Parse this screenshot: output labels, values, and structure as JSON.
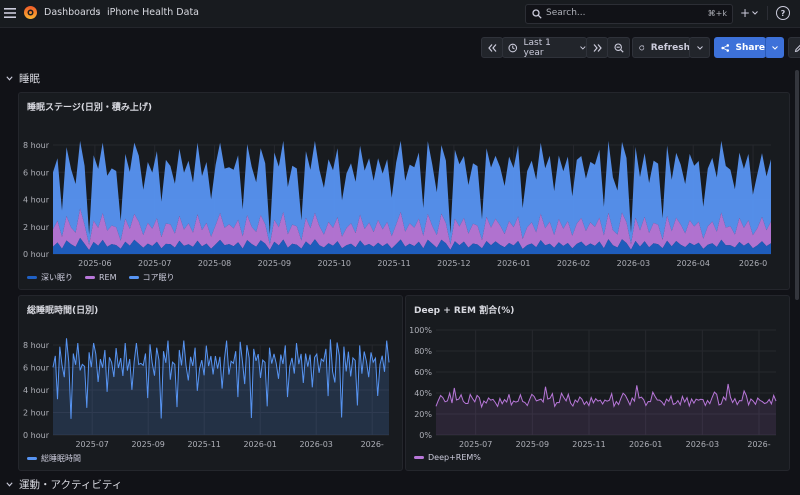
{
  "topbar": {
    "breadcrumb_root": "Dashboards",
    "breadcrumb_sep": "›",
    "breadcrumb_current": "iPhone Health Data",
    "search_placeholder": "Search...",
    "search_shortcut": "⌘+k",
    "plus_label": "+",
    "help_label": "?"
  },
  "toolbar": {
    "time_range": "Last 1 year",
    "refresh_label": "Refresh",
    "share_label": "Share"
  },
  "rows": {
    "sleep_title": "睡眠",
    "activity_title": "運動・アクティビティ"
  },
  "colors": {
    "deep": "#1f60c4",
    "rem": "#b877d9",
    "core": "#5794f2",
    "total": "#5794f2",
    "ratio": "#b877d9",
    "accent": "#3d71d9"
  },
  "panels": {
    "stages": {
      "title": "睡眠ステージ(日別・積み上げ)",
      "y_ticks": [
        "0 hour",
        "2 hour",
        "4 hour",
        "6 hour",
        "8 hour"
      ],
      "x_ticks": [
        "2025-06",
        "2025-07",
        "2025-08",
        "2025-09",
        "2025-10",
        "2025-11",
        "2025-12",
        "2026-01",
        "2026-02",
        "2026-03",
        "2026-04",
        "2026-0"
      ],
      "legend": [
        "深い眠り",
        "REM",
        "コア眠り"
      ]
    },
    "total": {
      "title": "総睡眠時間(日別)",
      "y_ticks": [
        "0 hour",
        "2 hour",
        "4 hour",
        "6 hour",
        "8 hour"
      ],
      "x_ticks": [
        "2025-07",
        "2025-09",
        "2025-11",
        "2026-01",
        "2026-03",
        "2026-"
      ],
      "legend": [
        "総睡眠時間"
      ]
    },
    "ratio": {
      "title": "Deep + REM 割合(%)",
      "y_ticks": [
        "0%",
        "20%",
        "40%",
        "60%",
        "80%",
        "100%"
      ],
      "x_ticks": [
        "2025-07",
        "2025-09",
        "2025-11",
        "2026-01",
        "2026-03",
        "2026-"
      ],
      "legend": [
        "Deep+REM%"
      ]
    }
  },
  "chart_data": [
    {
      "type": "area",
      "title": "睡眠ステージ(日別・積み上げ)",
      "stacked": true,
      "x_range": [
        "2025-05",
        "2026-05"
      ],
      "ylim": [
        0,
        9
      ],
      "y_unit": "hour",
      "series": [
        {
          "name": "深い眠り",
          "approx_values": [
            0.6,
            0.9,
            0.4,
            1.0,
            0.7,
            0.5,
            1.1,
            0.8,
            0.3,
            0.9,
            0.6,
            1.0,
            0.5,
            0.8,
            0.7,
            0.4,
            0.9,
            0.6,
            1.0,
            0.7,
            0.5,
            0.8,
            0.6,
            0.9,
            0.4,
            0.7,
            0.8,
            0.5,
            1.0,
            0.6,
            0.7,
            0.5,
            0.9,
            0.6,
            0.8,
            0.4,
            0.7,
            1.0,
            0.6,
            0.8
          ]
        },
        {
          "name": "REM",
          "approx_values": [
            1.4,
            1.7,
            0.9,
            1.8,
            1.2,
            1.0,
            2.0,
            1.5,
            0.4,
            1.6,
            1.3,
            1.9,
            1.1,
            1.5,
            1.4,
            0.6,
            1.7,
            1.2,
            1.8,
            1.5,
            1.0,
            1.6,
            1.3,
            1.7,
            0.8,
            1.4,
            1.6,
            1.1,
            1.9,
            1.2,
            1.5,
            1.0,
            1.8,
            1.3,
            1.6,
            0.9,
            1.4,
            1.9,
            1.2,
            1.6
          ]
        },
        {
          "name": "コア眠り",
          "approx_values": [
            4.6,
            4.9,
            2.0,
            5.1,
            4.2,
            3.4,
            5.3,
            4.7,
            0.8,
            4.9,
            4.3,
            5.0,
            3.8,
            4.6,
            4.4,
            1.5,
            4.8,
            4.1,
            5.0,
            4.5,
            3.6,
            4.7,
            4.2,
            4.9,
            2.5,
            4.4,
            4.7,
            3.9,
            5.1,
            4.2,
            4.5,
            3.5,
            4.9,
            4.3,
            4.7,
            2.8,
            4.4,
            5.0,
            4.1,
            4.6
          ]
        }
      ]
    },
    {
      "type": "area",
      "title": "総睡眠時間(日別)",
      "x_range": [
        "2025-05",
        "2026-05"
      ],
      "ylim": [
        0,
        9
      ],
      "y_unit": "hour",
      "series": [
        {
          "name": "総睡眠時間",
          "approx_values": [
            6.6,
            7.5,
            3.3,
            7.9,
            6.1,
            4.9,
            8.4,
            7.0,
            1.5,
            7.4,
            6.2,
            7.9,
            5.4,
            6.9,
            6.5,
            2.5,
            7.4,
            5.9,
            7.8,
            6.7,
            5.1,
            7.1,
            6.1,
            7.5,
            3.7,
            6.5,
            7.1,
            5.5,
            8.0,
            6.0,
            6.7,
            5.0,
            7.6,
            6.2,
            7.1,
            4.1,
            6.5,
            7.9,
            5.9,
            7.0
          ]
        }
      ]
    },
    {
      "type": "line",
      "title": "Deep + REM 割合(%)",
      "x_range": [
        "2025-05",
        "2026-05"
      ],
      "ylim": [
        0,
        100
      ],
      "y_unit": "%",
      "series": [
        {
          "name": "Deep+REM%",
          "approx_values": [
            30,
            35,
            39,
            36,
            31,
            31,
            37,
            33,
            47,
            34,
            34,
            37,
            30,
            33,
            32,
            40,
            35,
            31,
            36,
            33,
            29,
            34,
            31,
            35,
            32,
            32,
            34,
            29,
            36,
            30,
            33,
            30,
            36,
            31,
            34,
            32,
            32,
            37,
            30,
            34
          ]
        }
      ]
    }
  ]
}
